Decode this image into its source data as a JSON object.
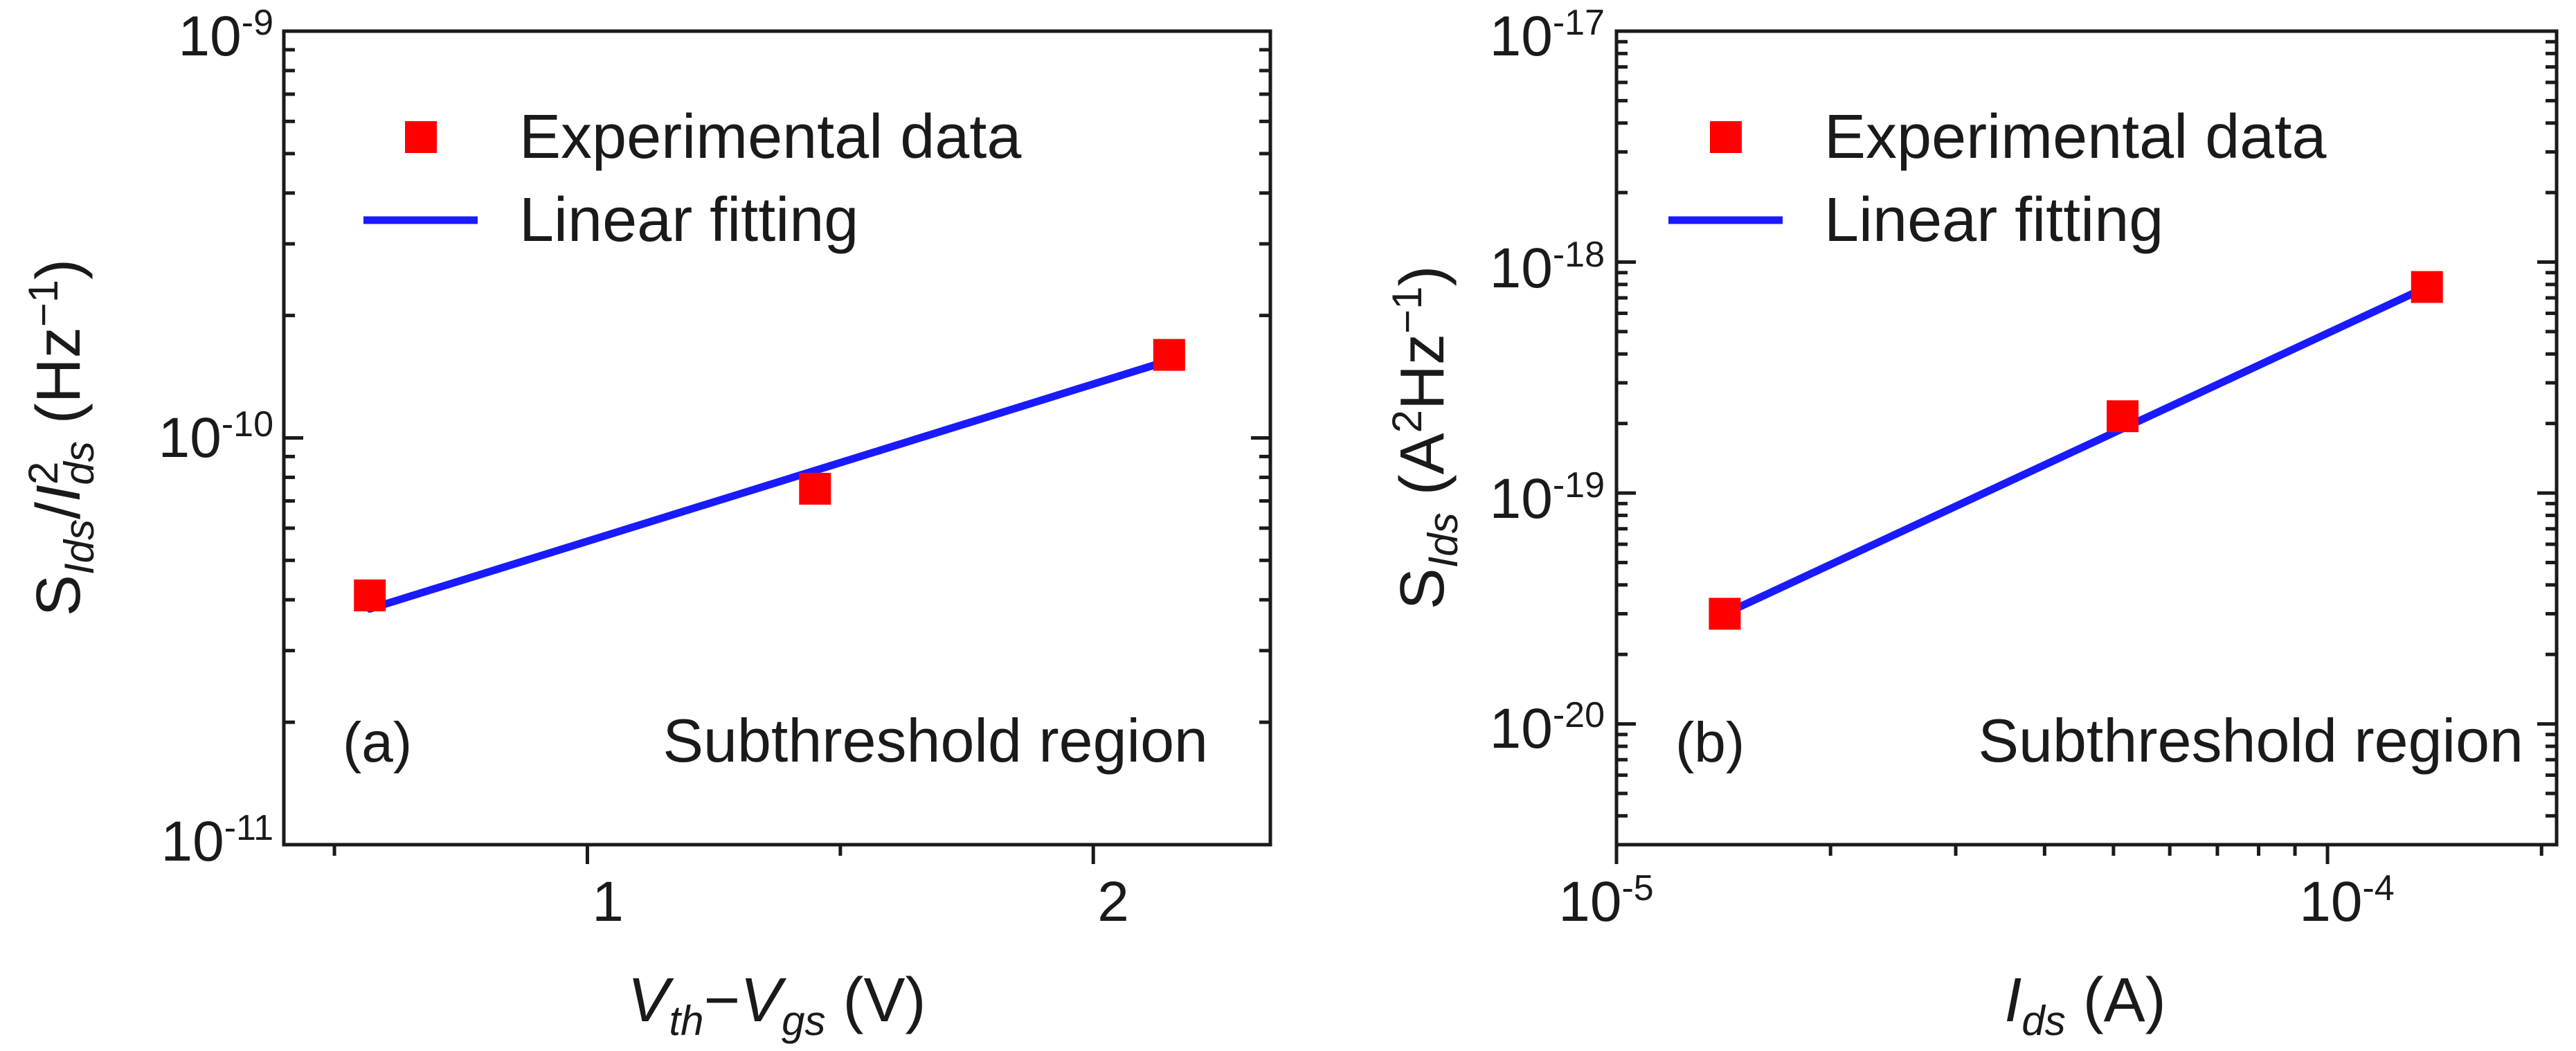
{
  "colors": {
    "experimental_marker": "#ff0000",
    "fit_line": "#1a1aff",
    "axes": "#1a1a1a"
  },
  "chart_data": [
    {
      "type": "scatter",
      "panel_label": "(a)",
      "annotation": "Subthreshold region",
      "xlabel": {
        "main": "V",
        "sub1": "th",
        "dash": "−",
        "main2": "V",
        "sub2": "gs",
        "unit": " (V)"
      },
      "ylabel": {
        "S": "S",
        "Ids": "Ids",
        "slash": "/",
        "I": "I",
        "sq": "2",
        "ds": "ds",
        "unit": " (Hz",
        "exp": "−1",
        "close": ")"
      },
      "x_scale": "linear",
      "y_scale": "log",
      "xlim": [
        0.4,
        2.35
      ],
      "ylim": [
        1e-11,
        1e-09
      ],
      "x_ticks": [
        {
          "value": 1,
          "label": "1"
        },
        {
          "value": 2,
          "label": "2"
        }
      ],
      "y_ticks": [
        {
          "value": 1e-11,
          "base": "10",
          "exp": "-11"
        },
        {
          "value": 1e-10,
          "base": "10",
          "exp": "-10"
        },
        {
          "value": 1e-09,
          "base": "10",
          "exp": "-9"
        }
      ],
      "legend": {
        "position": "top-left",
        "entries": [
          "Experimental data",
          "Linear fitting"
        ]
      },
      "series": [
        {
          "name": "Experimental data",
          "kind": "marker",
          "x": [
            0.57,
            1.45,
            2.15
          ],
          "y": [
            4.1e-11,
            7.5e-11,
            1.6e-10
          ]
        },
        {
          "name": "Linear fitting",
          "kind": "line",
          "x": [
            0.57,
            2.15
          ],
          "y": [
            3.8e-11,
            1.55e-10
          ]
        }
      ]
    },
    {
      "type": "scatter",
      "panel_label": "(b)",
      "annotation": "Subthreshold region",
      "xlabel": {
        "main": "I",
        "sub": "ds",
        "unit": " (A)"
      },
      "ylabel": {
        "S": "S",
        "Ids": "Ids",
        "unit": " (A",
        "sq": "2",
        "hz": "Hz",
        "exp": "−1",
        "close": ")"
      },
      "x_scale": "log",
      "y_scale": "log",
      "xlim": [
        1e-05,
        0.00021
      ],
      "ylim": [
        3e-21,
        1e-17
      ],
      "x_ticks": [
        {
          "value": 1e-05,
          "base": "10",
          "exp": "-5"
        },
        {
          "value": 0.0001,
          "base": "10",
          "exp": "-4"
        }
      ],
      "y_ticks": [
        {
          "value": 1e-20,
          "base": "10",
          "exp": "-20"
        },
        {
          "value": 1e-19,
          "base": "10",
          "exp": "-19"
        },
        {
          "value": 1e-18,
          "base": "10",
          "exp": "-18"
        },
        {
          "value": 1e-17,
          "base": "10",
          "exp": "-17"
        }
      ],
      "legend": {
        "position": "top-left",
        "entries": [
          "Experimental data",
          "Linear fitting"
        ]
      },
      "series": [
        {
          "name": "Experimental data",
          "kind": "marker",
          "x": [
            1.42e-05,
            5.15e-05,
            0.000138
          ],
          "y": [
            3e-20,
            2.15e-19,
            7.8e-19
          ]
        },
        {
          "name": "Linear fitting",
          "kind": "line",
          "x": [
            1.42e-05,
            0.000138
          ],
          "y": [
            3e-20,
            7.8e-19
          ]
        }
      ]
    }
  ]
}
